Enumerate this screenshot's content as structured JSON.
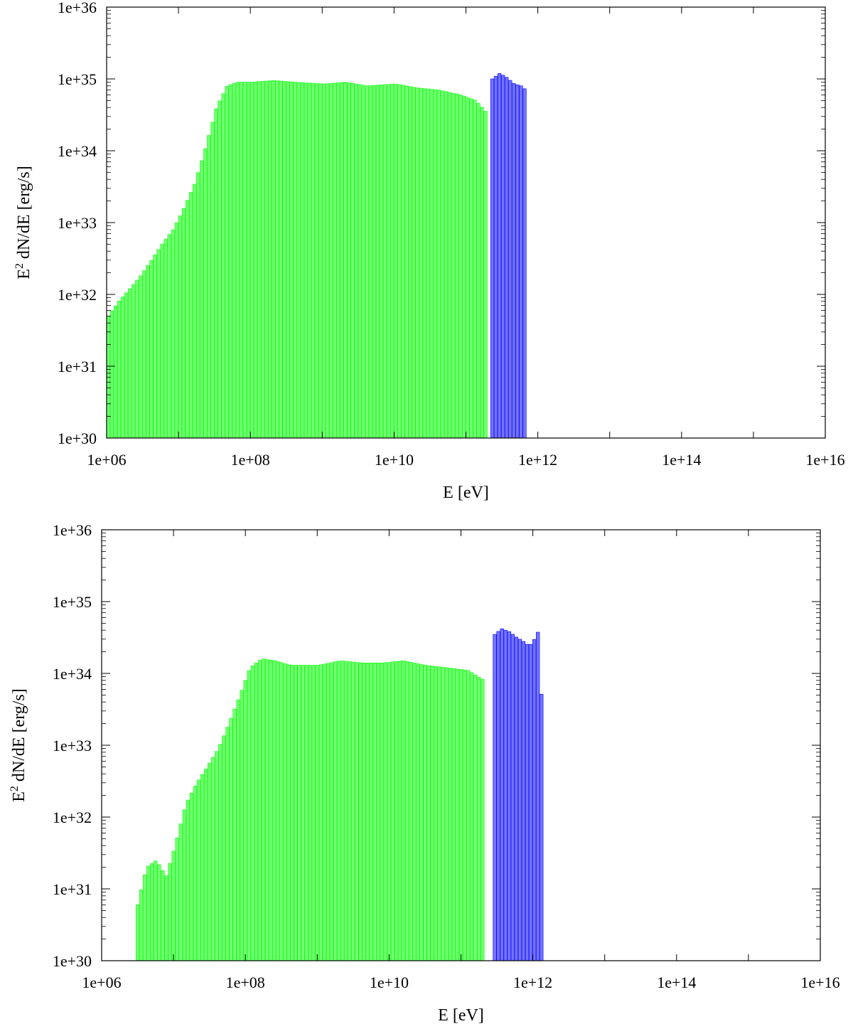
{
  "chart_data": [
    {
      "type": "bar",
      "xlabel": "E [eV]",
      "ylabel": {
        "base": "E",
        "sup": "2",
        "rest": " dN/dE [erg/s]"
      },
      "x_scale": "log",
      "y_scale": "log",
      "xlim": [
        1000000.0,
        1e+16
      ],
      "ylim": [
        1e+30,
        1e+36
      ],
      "x_ticks": [
        "1e+06",
        "1e+08",
        "1e+10",
        "1e+12",
        "1e+14",
        "1e+16"
      ],
      "y_ticks": [
        "1e+30",
        "1e+31",
        "1e+32",
        "1e+33",
        "1e+34",
        "1e+35",
        "1e+36"
      ],
      "grid": false,
      "series": [
        {
          "color": "#00ff00",
          "points": [
            [
              1000000.0,
              5e+31
            ],
            [
              1400000.0,
              8e+31
            ],
            [
              2000000.0,
              1.2e+32
            ],
            [
              2800000.0,
              1.8e+32
            ],
            [
              4000000.0,
              3e+32
            ],
            [
              5600000.0,
              5e+32
            ],
            [
              8000000.0,
              8e+32
            ],
            [
              11000000.0,
              1.5e+33
            ],
            [
              16000000.0,
              3.5e+33
            ],
            [
              22000000.0,
              1e+34
            ],
            [
              32000000.0,
              4e+34
            ],
            [
              45000000.0,
              8e+34
            ],
            [
              63000000.0,
              9e+34
            ],
            [
              100000000.0,
              9e+34
            ],
            [
              200000000.0,
              9.5e+34
            ],
            [
              400000000.0,
              9e+34
            ],
            [
              1000000000.0,
              8.5e+34
            ],
            [
              2000000000.0,
              9e+34
            ],
            [
              4000000000.0,
              8e+34
            ],
            [
              10000000000.0,
              8.5e+34
            ],
            [
              20000000000.0,
              7.5e+34
            ],
            [
              40000000000.0,
              7e+34
            ],
            [
              80000000000.0,
              6e+34
            ],
            [
              130000000000.0,
              5e+34
            ],
            [
              180000000000.0,
              3.5e+34
            ]
          ]
        },
        {
          "color": "#0000ff",
          "points": [
            [
              220000000000.0,
              1e+35
            ],
            [
              280000000000.0,
              1.2e+35
            ],
            [
              350000000000.0,
              1.05e+35
            ],
            [
              450000000000.0,
              8.5e+34
            ],
            [
              560000000000.0,
              8e+34
            ],
            [
              650000000000.0,
              7e+34
            ]
          ]
        }
      ]
    },
    {
      "type": "bar",
      "xlabel": "E [eV]",
      "ylabel": {
        "base": "E",
        "sup": "2",
        "rest": " dN/dE [erg/s]"
      },
      "x_scale": "log",
      "y_scale": "log",
      "xlim": [
        1000000.0,
        1e+16
      ],
      "ylim": [
        1e+30,
        1e+36
      ],
      "x_ticks": [
        "1e+06",
        "1e+08",
        "1e+10",
        "1e+12",
        "1e+14",
        "1e+16"
      ],
      "y_ticks": [
        "1e+30",
        "1e+31",
        "1e+32",
        "1e+33",
        "1e+34",
        "1e+35",
        "1e+36"
      ],
      "grid": false,
      "series": [
        {
          "color": "#00ff00",
          "points": [
            [
              3000000.0,
              6e+30
            ],
            [
              4000000.0,
              2e+31
            ],
            [
              5500000.0,
              2.5e+31
            ],
            [
              7500000.0,
              1.5e+31
            ],
            [
              10000000.0,
              4e+31
            ],
            [
              14000000.0,
              1.5e+32
            ],
            [
              20000000.0,
              3e+32
            ],
            [
              28000000.0,
              5e+32
            ],
            [
              40000000.0,
              9e+32
            ],
            [
              56000000.0,
              2e+33
            ],
            [
              80000000.0,
              5e+33
            ],
            [
              110000000.0,
              1.2e+34
            ],
            [
              160000000.0,
              1.6e+34
            ],
            [
              250000000.0,
              1.5e+34
            ],
            [
              400000000.0,
              1.3e+34
            ],
            [
              630000000.0,
              1.3e+34
            ],
            [
              1000000000.0,
              1.3e+34
            ],
            [
              2000000000.0,
              1.5e+34
            ],
            [
              4000000000.0,
              1.4e+34
            ],
            [
              8000000000.0,
              1.4e+34
            ],
            [
              15000000000.0,
              1.5e+34
            ],
            [
              30000000000.0,
              1.3e+34
            ],
            [
              60000000000.0,
              1.2e+34
            ],
            [
              120000000000.0,
              1.1e+34
            ],
            [
              200000000000.0,
              8e+33
            ]
          ]
        },
        {
          "color": "#0000ff",
          "points": [
            [
              280000000000.0,
              3.5e+34
            ],
            [
              350000000000.0,
              4.2e+34
            ],
            [
              450000000000.0,
              3.8e+34
            ],
            [
              560000000000.0,
              3.2e+34
            ],
            [
              700000000000.0,
              2.8e+34
            ],
            [
              850000000000.0,
              2.4e+34
            ],
            [
              1000000000000.0,
              3e+34
            ],
            [
              1150000000000.0,
              4e+34
            ],
            [
              1300000000000.0,
              2e+33
            ]
          ]
        }
      ]
    }
  ]
}
